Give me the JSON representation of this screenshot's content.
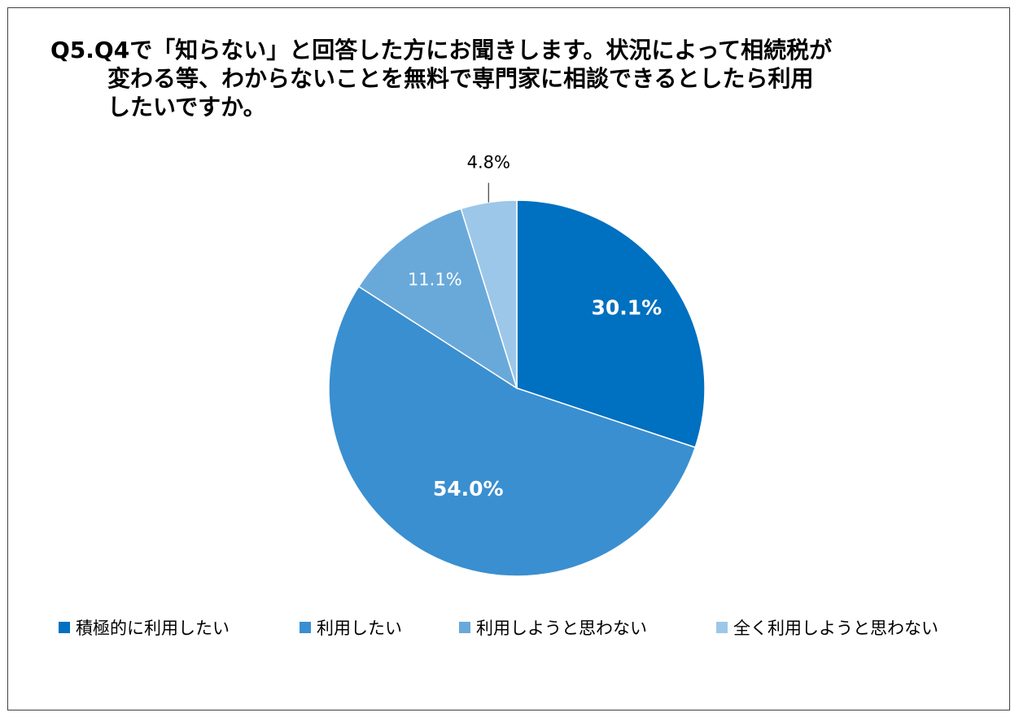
{
  "chart_data": {
    "type": "pie",
    "title_lines": [
      "Q5.Q4で「知らない」と回答した方にお聞きします。状況によって相続税が",
      "変わる等、わからないことを無料で専門家に相談できるとしたら利用",
      "したいですか。"
    ],
    "slices": [
      {
        "label": "積極的に利用したい",
        "value": 30.1,
        "display": "30.1%",
        "color": "#0070C0"
      },
      {
        "label": "利用したい",
        "value": 54.0,
        "display": "54.0%",
        "color": "#3A8FD0"
      },
      {
        "label": "利用しようと思わない",
        "value": 11.1,
        "display": "11.1%",
        "color": "#69A9DA"
      },
      {
        "label": "全く利用しようと思わない",
        "value": 4.8,
        "display": "4.8%",
        "color": "#9DC7E8"
      }
    ],
    "start_angle": "12 o'clock",
    "direction": "clockwise",
    "legend_position": "bottom"
  }
}
